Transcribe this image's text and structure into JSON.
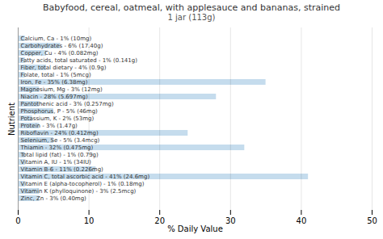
{
  "chart_data": {
    "type": "bar",
    "orientation": "horizontal",
    "title": "Babyfood, cereal, oatmeal, with applesauce and bananas, strained",
    "subtitle": "1 jar (113g)",
    "xlabel": "% Daily Value",
    "ylabel": "Nutrient",
    "categories": [
      "Calcium, Ca - 1% (10mg)",
      "Carbohydrates - 6% (17.40g)",
      "Copper, Cu - 4% (0.082mg)",
      "Fatty acids, total saturated - 1% (0.141g)",
      "Fiber, total dietary - 4% (0.9g)",
      "Folate, total - 1% (5mcg)",
      "Iron, Fe - 35% (6.38mg)",
      "Magnesium, Mg - 3% (12mg)",
      "Niacin - 28% (5.697mg)",
      "Pantothenic acid - 3% (0.257mg)",
      "Phosphorus, P - 5% (46mg)",
      "Potassium, K - 2% (53mg)",
      "Protein - 3% (1.47g)",
      "Riboflavin - 24% (0.412mg)",
      "Selenium, Se - 5% (3.4mcg)",
      "Thiamin - 32% (0.475mg)",
      "Total lipid (fat) - 1% (0.79g)",
      "Vitamin A, IU - 1% (34IU)",
      "Vitamin B-6 - 11% (0.226mg)",
      "Vitamin C, total ascorbic acid - 41% (24.6mg)",
      "Vitamin E (alpha-tocopherol) - 1% (0.18mg)",
      "Vitamin K (phylloquinone) - 3% (2.5mcg)",
      "Zinc, Zn - 3% (0.40mg)"
    ],
    "values": [
      1,
      6,
      4,
      1,
      4,
      1,
      35,
      3,
      28,
      3,
      5,
      2,
      3,
      24,
      5,
      32,
      1,
      1,
      11,
      41,
      1,
      3,
      3
    ],
    "color": "#c5dced",
    "xlim": [
      0,
      50
    ],
    "xticks": [
      0,
      10,
      20,
      30,
      40,
      50
    ],
    "grid": true,
    "tick_labels": "x"
  }
}
